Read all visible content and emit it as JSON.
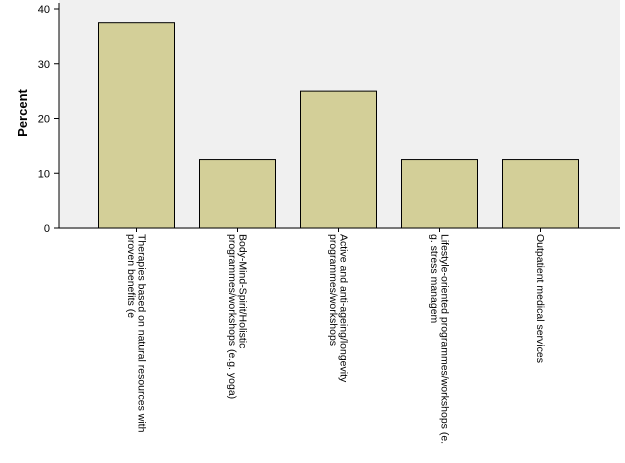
{
  "chart_data": {
    "type": "bar",
    "ylabel": "Percent",
    "xlabel": "",
    "ylim": [
      0,
      40
    ],
    "yticks": [
      0,
      10,
      20,
      30,
      40
    ],
    "grid": false,
    "colors": {
      "bar_fill": "#d3cf98",
      "bar_stroke": "#000000",
      "plot_bg": "#f0f0f0"
    },
    "categories": [
      [
        "Therapies based on natural resources with",
        "proven benefits (e"
      ],
      [
        "Body-Mind-Spirit/Holistic",
        "programmes/workshops (e.g. yoga)"
      ],
      [
        "Active and anti-ageing/longevity",
        "programmes/workshops"
      ],
      [
        "Lifestyle-oriented programmes/workshops (e.",
        "g. stress managem"
      ],
      [
        "Outpatient medical services"
      ]
    ],
    "values": [
      37.5,
      12.5,
      25,
      12.5,
      12.5
    ]
  }
}
